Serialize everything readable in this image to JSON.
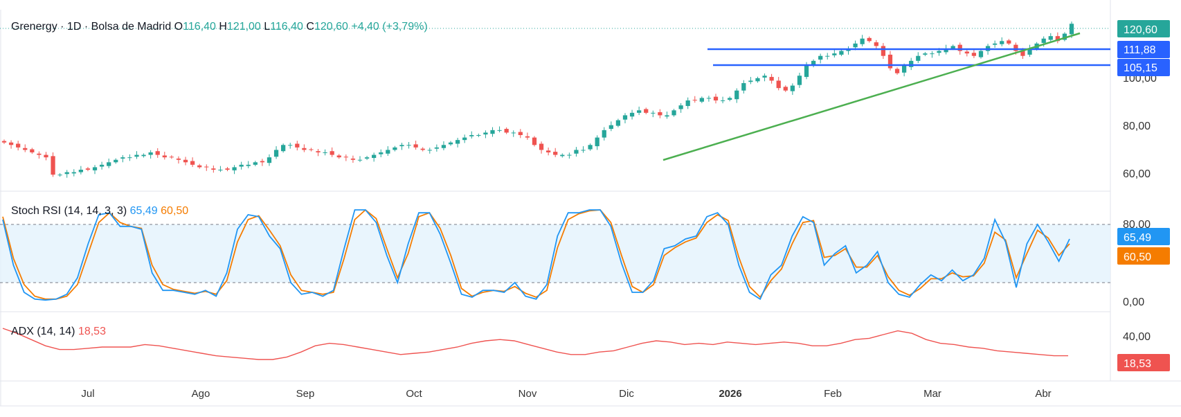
{
  "header": {
    "symbol": "Grenergy",
    "interval": "1D",
    "exchange": "Bolsa de Madrid",
    "open_label": "O",
    "open": "116,40",
    "high_label": "H",
    "high": "121,00",
    "low_label": "L",
    "low": "116,40",
    "close_label": "C",
    "close": "120,60",
    "change": "+4,40 (+3,79%)"
  },
  "colors": {
    "up": "#26a69a",
    "down": "#ef5350",
    "level_line": "#2962ff",
    "trend_line": "#4caf50",
    "stoch_k": "#2196f3",
    "stoch_d": "#f57c00",
    "adx": "#ef5350",
    "band_fill": "#e3f2fd"
  },
  "badges": {
    "last": "120,60",
    "level_1": "111,88",
    "level_2": "105,15",
    "stoch_k": "65,49",
    "stoch_d": "60,50",
    "adx": "18,53"
  },
  "stoch_legend": {
    "label": "Stoch RSI (14, 14, 3, 3)",
    "k": "65,49",
    "d": "60,50"
  },
  "adx_legend": {
    "label": "ADX (14, 14)",
    "value": "18,53"
  },
  "price_axis_ticks": [
    "100,00",
    "80,00",
    "60,00"
  ],
  "stoch_axis_ticks": [
    "80,00",
    "0,00"
  ],
  "adx_axis_ticks": [
    "40,00"
  ],
  "time_axis": [
    {
      "label": "Jul",
      "bold": false
    },
    {
      "label": "Ago",
      "bold": false
    },
    {
      "label": "Sep",
      "bold": false
    },
    {
      "label": "Oct",
      "bold": false
    },
    {
      "label": "Nov",
      "bold": false
    },
    {
      "label": "Dic",
      "bold": false
    },
    {
      "label": "2026",
      "bold": true
    },
    {
      "label": "Feb",
      "bold": false
    },
    {
      "label": "Mar",
      "bold": false
    },
    {
      "label": "Abr",
      "bold": false
    }
  ],
  "chart_data": [
    {
      "type": "line",
      "title": "Grenergy · 1D · Bolsa de Madrid",
      "ylim": [
        55,
        125
      ],
      "series": [
        {
          "name": "Grenergy",
          "values": [
            73,
            72,
            71,
            70,
            69,
            68,
            67,
            60,
            60,
            61,
            61,
            62,
            62,
            63,
            64,
            65,
            66,
            67,
            67,
            68,
            68,
            69,
            68,
            67,
            67,
            66,
            65,
            64,
            63,
            63,
            62,
            62,
            62,
            63,
            64,
            64,
            65,
            65,
            67,
            70,
            72,
            72,
            71,
            70,
            70,
            69,
            69,
            68,
            67,
            67,
            66,
            66,
            67,
            68,
            69,
            70,
            71,
            72,
            72,
            71,
            70,
            70,
            71,
            72,
            73,
            74,
            75,
            76,
            76,
            77,
            78,
            78,
            77,
            77,
            76,
            75,
            72,
            70,
            69,
            68,
            68,
            68,
            70,
            70,
            72,
            75,
            78,
            80,
            82,
            84,
            85,
            86,
            85,
            85,
            84,
            84,
            86,
            88,
            90,
            90,
            91,
            91,
            90,
            90,
            91,
            94,
            97,
            98,
            99,
            100,
            98,
            95,
            94,
            96,
            100,
            104,
            106,
            108,
            108,
            109,
            110,
            111,
            113,
            115,
            114,
            112,
            108,
            103,
            101,
            104,
            106,
            108,
            109,
            109,
            110,
            111,
            112,
            110,
            109,
            108,
            110,
            112,
            113,
            114,
            113,
            110,
            108,
            111,
            113,
            115,
            116,
            114,
            117,
            121
          ]
        }
      ],
      "annotations": [
        "111,88",
        "105,15"
      ]
    },
    {
      "type": "line",
      "title": "Stoch RSI (14, 14, 3, 3)",
      "ylim": [
        0,
        100
      ],
      "series": [
        {
          "name": "K",
          "values": [
            85,
            38,
            10,
            3,
            2,
            3,
            8,
            25,
            60,
            90,
            92,
            78,
            78,
            75,
            30,
            12,
            12,
            10,
            8,
            12,
            6,
            30,
            75,
            90,
            88,
            68,
            55,
            20,
            8,
            10,
            6,
            12,
            55,
            95,
            95,
            82,
            48,
            20,
            60,
            92,
            92,
            70,
            40,
            8,
            5,
            12,
            12,
            10,
            20,
            6,
            3,
            18,
            68,
            92,
            92,
            95,
            95,
            78,
            40,
            10,
            10,
            22,
            55,
            58,
            65,
            68,
            88,
            92,
            80,
            38,
            10,
            3,
            28,
            38,
            68,
            88,
            82,
            38,
            50,
            58,
            30,
            38,
            52,
            20,
            8,
            5,
            18,
            28,
            22,
            33,
            22,
            28,
            45,
            85,
            62,
            15,
            60,
            80,
            62,
            42,
            65
          ]
        },
        {
          "name": "D",
          "values": [
            88,
            45,
            18,
            6,
            3,
            3,
            6,
            18,
            50,
            82,
            92,
            82,
            78,
            76,
            38,
            18,
            13,
            11,
            9,
            11,
            8,
            22,
            62,
            85,
            89,
            74,
            58,
            28,
            12,
            10,
            8,
            10,
            45,
            85,
            95,
            86,
            55,
            25,
            50,
            88,
            92,
            76,
            48,
            14,
            6,
            10,
            12,
            11,
            16,
            9,
            5,
            12,
            56,
            85,
            91,
            94,
            95,
            82,
            48,
            16,
            10,
            18,
            48,
            56,
            62,
            66,
            82,
            90,
            84,
            46,
            16,
            5,
            22,
            34,
            60,
            82,
            84,
            46,
            48,
            55,
            36,
            36,
            48,
            26,
            12,
            7,
            14,
            24,
            24,
            30,
            26,
            27,
            40,
            72,
            64,
            25,
            50,
            74,
            66,
            48,
            60
          ]
        }
      ]
    },
    {
      "type": "line",
      "title": "ADX (14, 14)",
      "ylim": [
        0,
        50
      ],
      "series": [
        {
          "name": "ADX",
          "values": [
            40,
            36,
            31,
            26,
            23,
            23,
            24,
            25,
            25,
            25,
            27,
            26,
            24,
            22,
            20,
            18,
            17,
            16,
            15,
            15,
            17,
            21,
            26,
            28,
            27,
            25,
            23,
            21,
            19,
            20,
            21,
            23,
            25,
            28,
            30,
            31,
            30,
            27,
            24,
            21,
            19,
            19,
            21,
            22,
            25,
            28,
            30,
            29,
            27,
            28,
            27,
            29,
            28,
            27,
            28,
            29,
            28,
            26,
            26,
            28,
            31,
            32,
            35,
            38,
            36,
            31,
            28,
            27,
            25,
            24,
            22,
            21,
            20,
            19,
            18,
            18
          ]
        }
      ]
    }
  ]
}
